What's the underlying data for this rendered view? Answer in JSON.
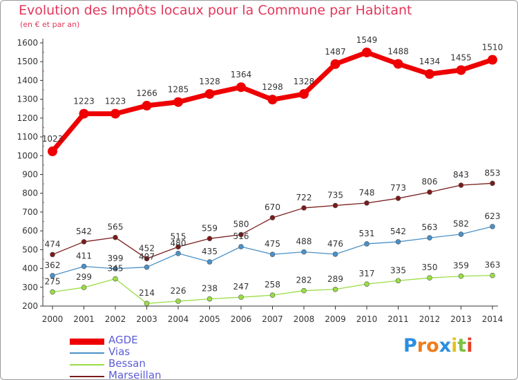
{
  "chart_data": {
    "type": "line",
    "title": "Evolution des Impôts locaux pour la Commune par Habitant",
    "subtitle": "(en € et par an)",
    "xlabel": "",
    "ylabel": "",
    "categories": [
      "2000",
      "2001",
      "2002",
      "2003",
      "2004",
      "2005",
      "2006",
      "2007",
      "2008",
      "2009",
      "2010",
      "2011",
      "2012",
      "2013",
      "2014"
    ],
    "y_ticks": [
      200,
      300,
      400,
      500,
      600,
      700,
      800,
      900,
      1000,
      1100,
      1200,
      1300,
      1400,
      1500,
      1600
    ],
    "ylim": [
      200,
      1600
    ],
    "grid": false,
    "legend_position": "bottom-left",
    "series": [
      {
        "name": "AGDE",
        "color": "#ee0000",
        "values": [
          1023,
          1223,
          1223,
          1266,
          1285,
          1328,
          1364,
          1298,
          1328,
          1487,
          1549,
          1488,
          1434,
          1455,
          1510
        ]
      },
      {
        "name": "Vias",
        "color": "#4a90c8",
        "values": [
          362,
          411,
          399,
          407,
          480,
          435,
          516,
          475,
          488,
          476,
          531,
          542,
          563,
          582,
          623
        ]
      },
      {
        "name": "Bessan",
        "color": "#99dd44",
        "values": [
          275,
          299,
          345,
          214,
          226,
          238,
          247,
          258,
          282,
          289,
          317,
          335,
          350,
          359,
          363
        ]
      },
      {
        "name": "Marseillan",
        "color": "#7a1a1a",
        "values": [
          474,
          542,
          565,
          452,
          515,
          559,
          580,
          670,
          722,
          735,
          748,
          773,
          806,
          843,
          853
        ]
      }
    ]
  },
  "brand": {
    "letters": [
      "P",
      "r",
      "o",
      "x",
      "i",
      "t",
      "i"
    ],
    "colors": [
      "#2a8ee0",
      "#f07c1a",
      "#f07c1a",
      "#2a8ee0",
      "#e8c21a",
      "#7cc242",
      "#e8402a"
    ]
  }
}
